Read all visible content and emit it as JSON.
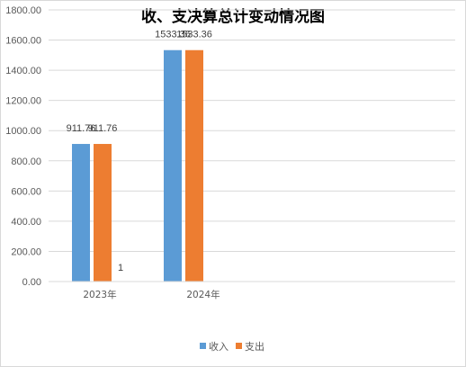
{
  "chart_data": {
    "type": "bar",
    "title": "收、支决算总计变动情况图",
    "categories": [
      "2023年",
      "2024年"
    ],
    "series": [
      {
        "name": "收入",
        "values": [
          911.76,
          1533.36
        ],
        "color": "#5b9bd5"
      },
      {
        "name": "支出",
        "values": [
          911.76,
          1533.36
        ],
        "color": "#ed7d31"
      }
    ],
    "data_labels": [
      [
        "911.76",
        "1533.36"
      ],
      [
        "911.76",
        "1533.36"
      ]
    ],
    "extra_label": "1",
    "yticks": [
      "0.00",
      "200.00",
      "400.00",
      "600.00",
      "800.00",
      "1000.00",
      "1200.00",
      "1400.00",
      "1600.00",
      "1800.00"
    ],
    "ylim": [
      0,
      1800
    ],
    "grid": true,
    "legend_position": "bottom"
  }
}
